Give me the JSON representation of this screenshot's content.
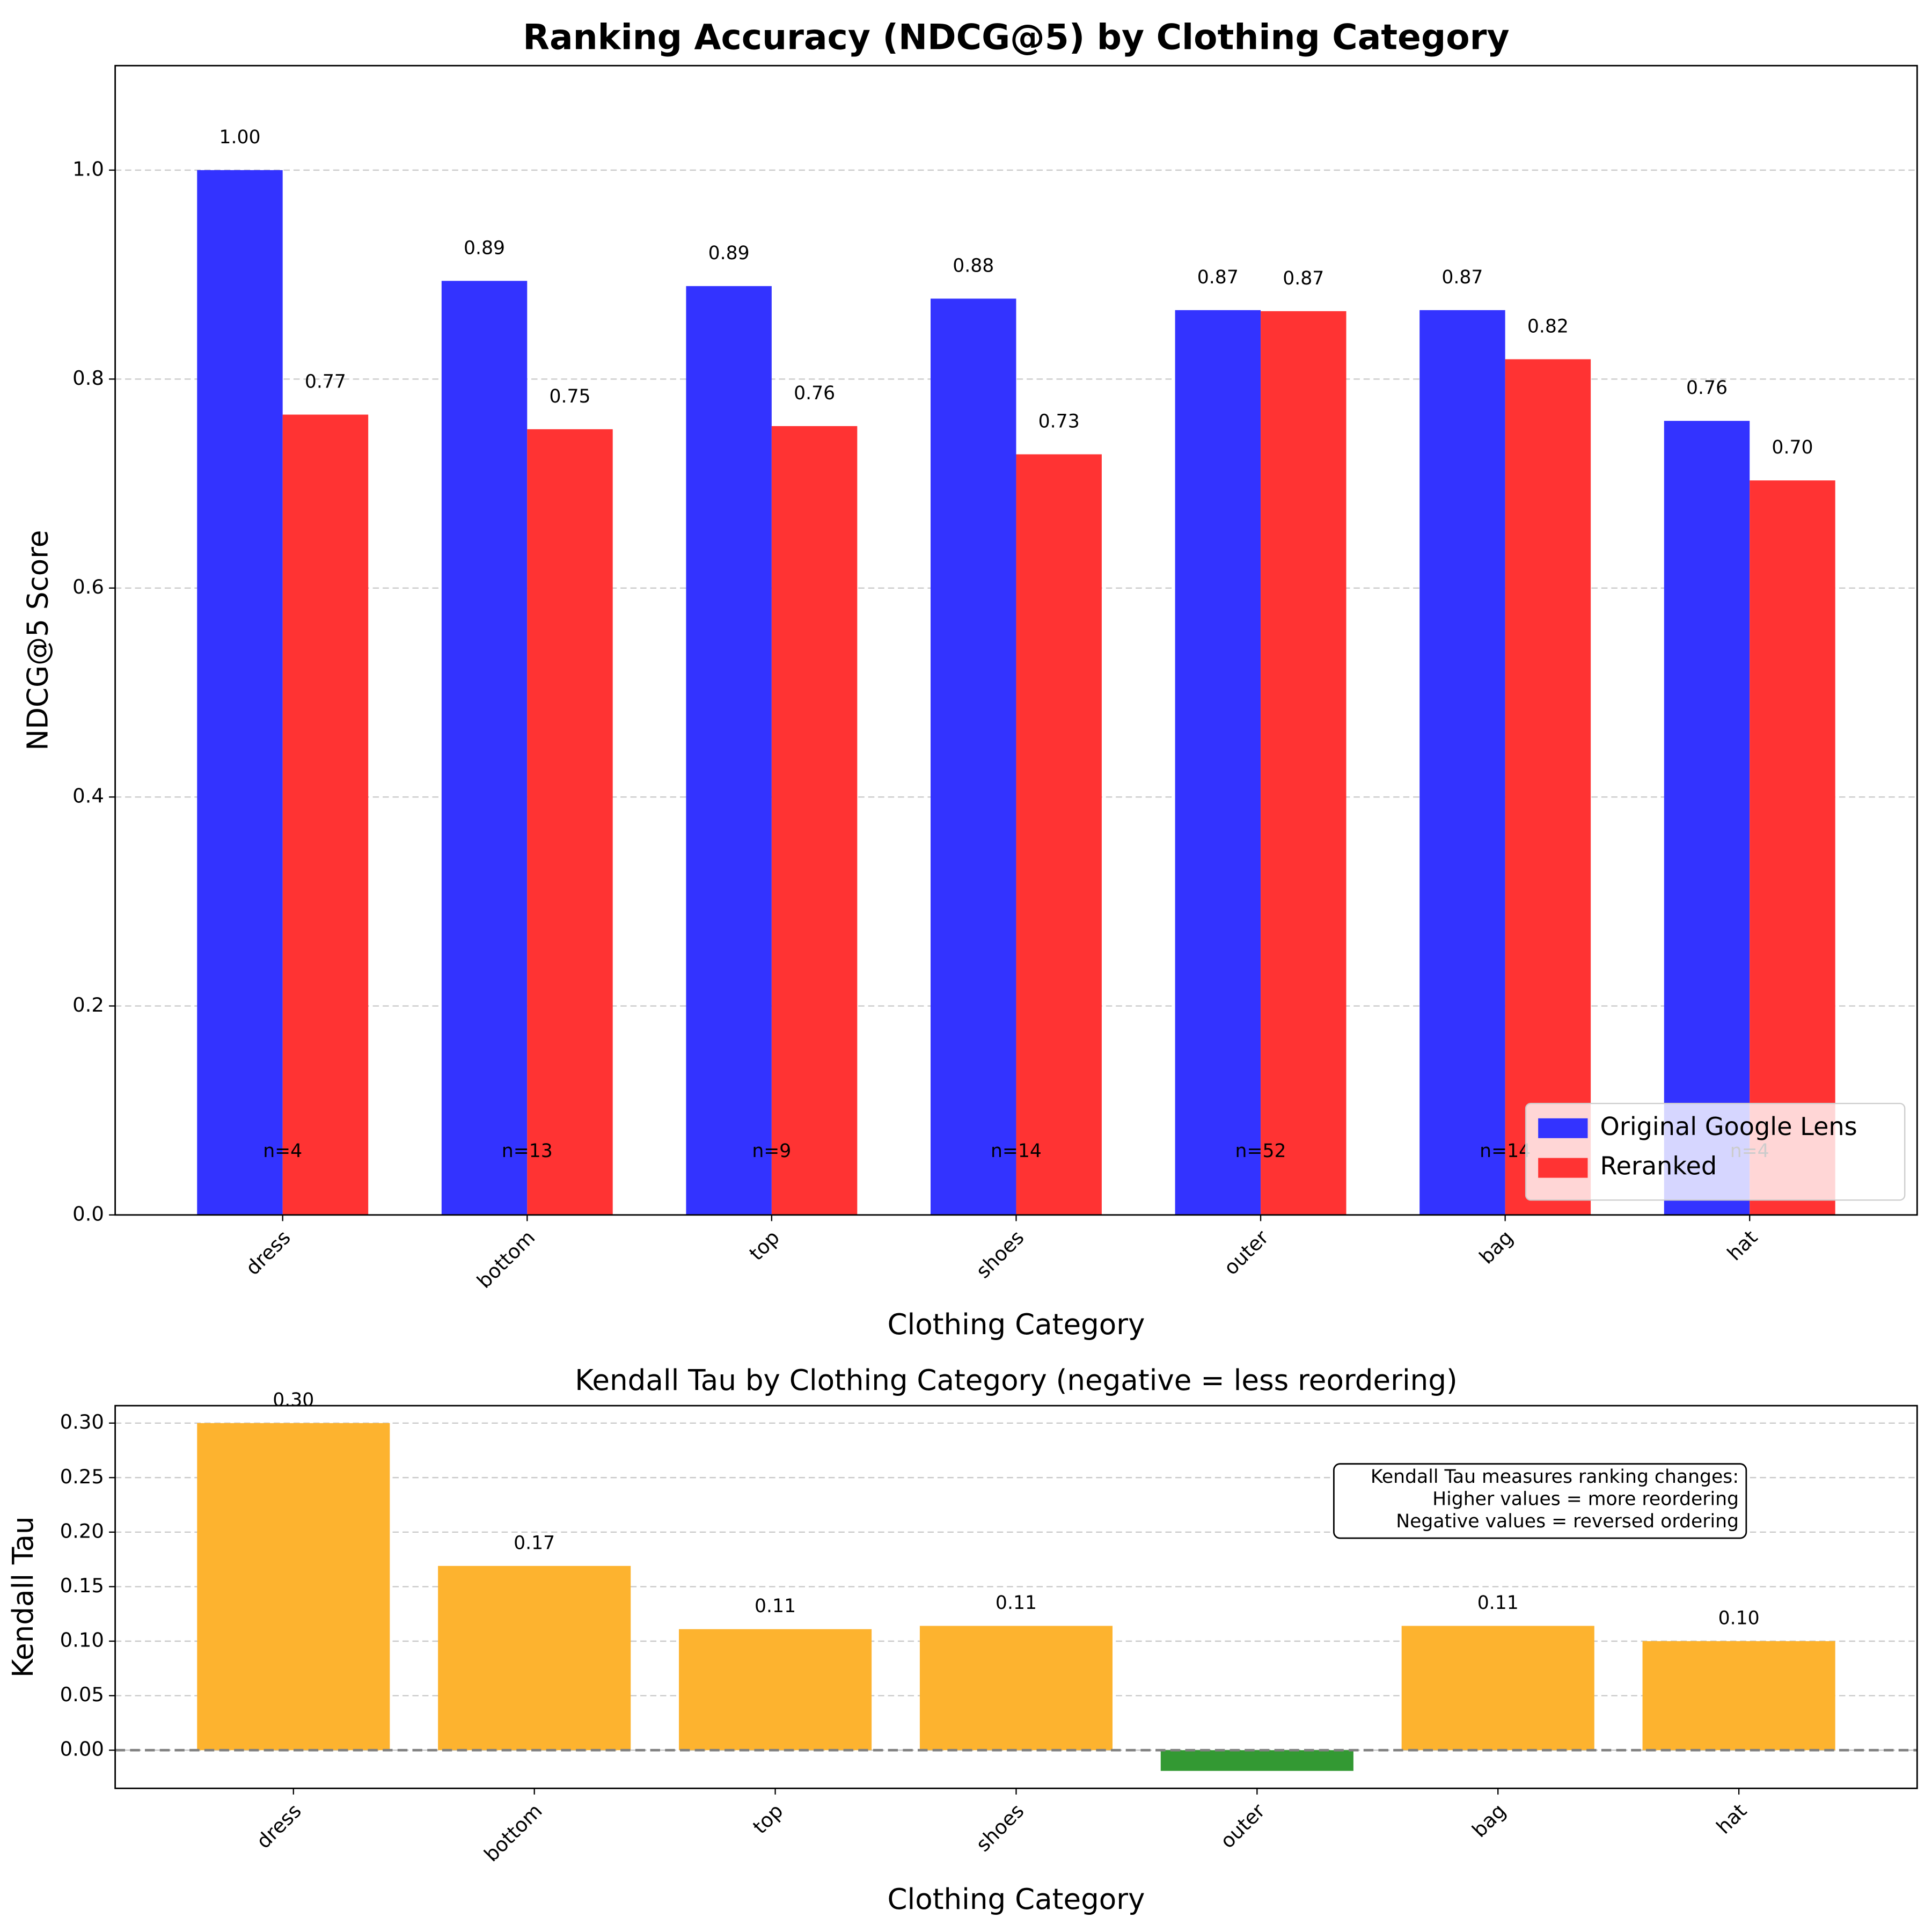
{
  "chart_data": [
    {
      "type": "grouped_bar",
      "title": "Ranking Accuracy (NDCG@5) by Clothing Category",
      "xlabel": "Clothing Category",
      "ylabel": "NDCG@5 Score",
      "categories": [
        "dress",
        "bottom",
        "top",
        "shoes",
        "outer",
        "bag",
        "hat"
      ],
      "series": [
        {
          "name": "Original Google Lens",
          "color": "#3333ff",
          "values": [
            1.0,
            0.894,
            0.889,
            0.877,
            0.866,
            0.866,
            0.76
          ],
          "value_labels": [
            "1.00",
            "0.89",
            "0.89",
            "0.88",
            "0.87",
            "0.87",
            "0.76"
          ]
        },
        {
          "name": "Reranked",
          "color": "#ff3333",
          "values": [
            0.766,
            0.752,
            0.755,
            0.728,
            0.865,
            0.819,
            0.703
          ],
          "value_labels": [
            "0.77",
            "0.75",
            "0.76",
            "0.73",
            "0.87",
            "0.82",
            "0.70"
          ]
        }
      ],
      "annotations": [
        "n=4",
        "n=13",
        "n=9",
        "n=14",
        "n=52",
        "n=14",
        "n=4"
      ],
      "ylim": [
        0,
        1.1
      ],
      "yticks": [
        {
          "value": 0,
          "label": "0.0"
        },
        0.2,
        0.4,
        0.6,
        0.8,
        {
          "value": 1,
          "label": "1.0"
        }
      ],
      "grid": true,
      "legend": "lower right"
    },
    {
      "type": "bar",
      "title": "Kendall Tau by Clothing Category (negative = less reordering)",
      "xlabel": "Clothing Category",
      "ylabel": "Kendall Tau",
      "categories": [
        "dress",
        "bottom",
        "top",
        "shoes",
        "outer",
        "bag",
        "hat"
      ],
      "values": [
        0.3,
        0.169,
        0.111,
        0.114,
        -0.019,
        0.114,
        0.1
      ],
      "value_labels": [
        "0.30",
        "0.17",
        "0.11",
        "0.11",
        null,
        "0.11",
        "0.10"
      ],
      "colors": [
        "#fdb32f",
        "#fdb32f",
        "#fdb32f",
        "#fdb32f",
        "#339933",
        "#fdb32f",
        "#fdb32f"
      ],
      "ylim": [
        -0.035,
        0.316
      ],
      "yticks": [
        {
          "value": 0,
          "label": "0.00"
        },
        {
          "value": 0.05,
          "label": "0.05"
        },
        {
          "value": 0.1,
          "label": "0.10"
        },
        {
          "value": 0.15,
          "label": "0.15"
        },
        {
          "value": 0.2,
          "label": "0.20"
        },
        {
          "value": 0.25,
          "label": "0.25"
        },
        {
          "value": 0.3,
          "label": "0.30"
        }
      ],
      "grid": true,
      "reference_line": 0,
      "note": [
        "Kendall Tau measures ranking changes:",
        "Higher values = more reordering",
        "Negative values = reversed ordering"
      ]
    }
  ]
}
